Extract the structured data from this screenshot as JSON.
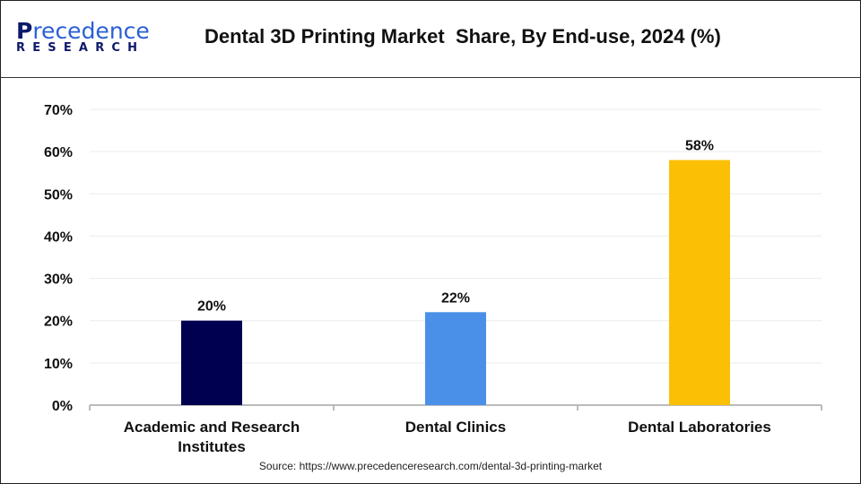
{
  "logo": {
    "brand_top": "Precedence",
    "brand_bottom": "RESEARCH"
  },
  "chart_data": {
    "type": "bar",
    "title": "Dental 3D Printing Market  Share, By End-use, 2024 (%)",
    "categories": [
      "Academic and Research Institutes",
      "Dental Clinics",
      "Dental Laboratories"
    ],
    "category_lines": [
      [
        "Academic and Research",
        "Institutes"
      ],
      [
        "Dental Clinics"
      ],
      [
        "Dental Laboratories"
      ]
    ],
    "values": [
      20,
      22,
      58
    ],
    "data_labels": [
      "20%",
      "22%",
      "58%"
    ],
    "colors": [
      "#000050",
      "#4a90e8",
      "#fbbf05"
    ],
    "ylim": [
      0,
      70
    ],
    "yticks": [
      0,
      10,
      20,
      30,
      40,
      50,
      60,
      70
    ],
    "ytick_labels": [
      "0%",
      "10%",
      "20%",
      "30%",
      "40%",
      "50%",
      "60%",
      "70%"
    ],
    "grid": true,
    "xlabel": "",
    "ylabel": ""
  },
  "source": "Source: https://www.precedenceresearch.com/dental-3d-printing-market"
}
